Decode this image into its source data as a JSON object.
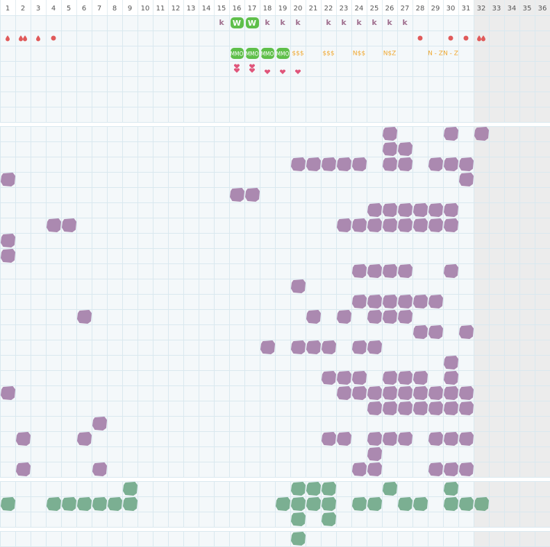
{
  "header": {
    "columns": [
      1,
      2,
      3,
      4,
      5,
      6,
      7,
      8,
      9,
      10,
      11,
      12,
      13,
      14,
      15,
      16,
      17,
      18,
      19,
      20,
      21,
      22,
      23,
      24,
      25,
      26,
      27,
      28,
      29,
      30,
      31,
      32,
      33,
      34,
      35,
      36
    ]
  },
  "top": {
    "rows": [
      [
        null,
        null,
        null,
        null,
        null,
        null,
        null,
        null,
        null,
        null,
        null,
        null,
        null,
        null,
        "k",
        "W",
        "W",
        "k",
        "k",
        "k",
        null,
        "k",
        "k",
        "k",
        "k",
        "k",
        "k",
        null,
        null,
        null,
        null,
        null,
        null,
        null,
        null,
        null
      ],
      [
        null,
        null,
        null,
        null,
        null,
        null,
        null,
        null,
        null,
        null,
        null,
        null,
        null,
        null,
        null,
        "MMO",
        "MMO",
        "MMO",
        "MMO",
        "$$$",
        null,
        "$$$",
        null,
        "N$$",
        null,
        "N$Z",
        null,
        null,
        "N - Z",
        "N - Z",
        null,
        null,
        null,
        null,
        null,
        null
      ]
    ]
  }
}
